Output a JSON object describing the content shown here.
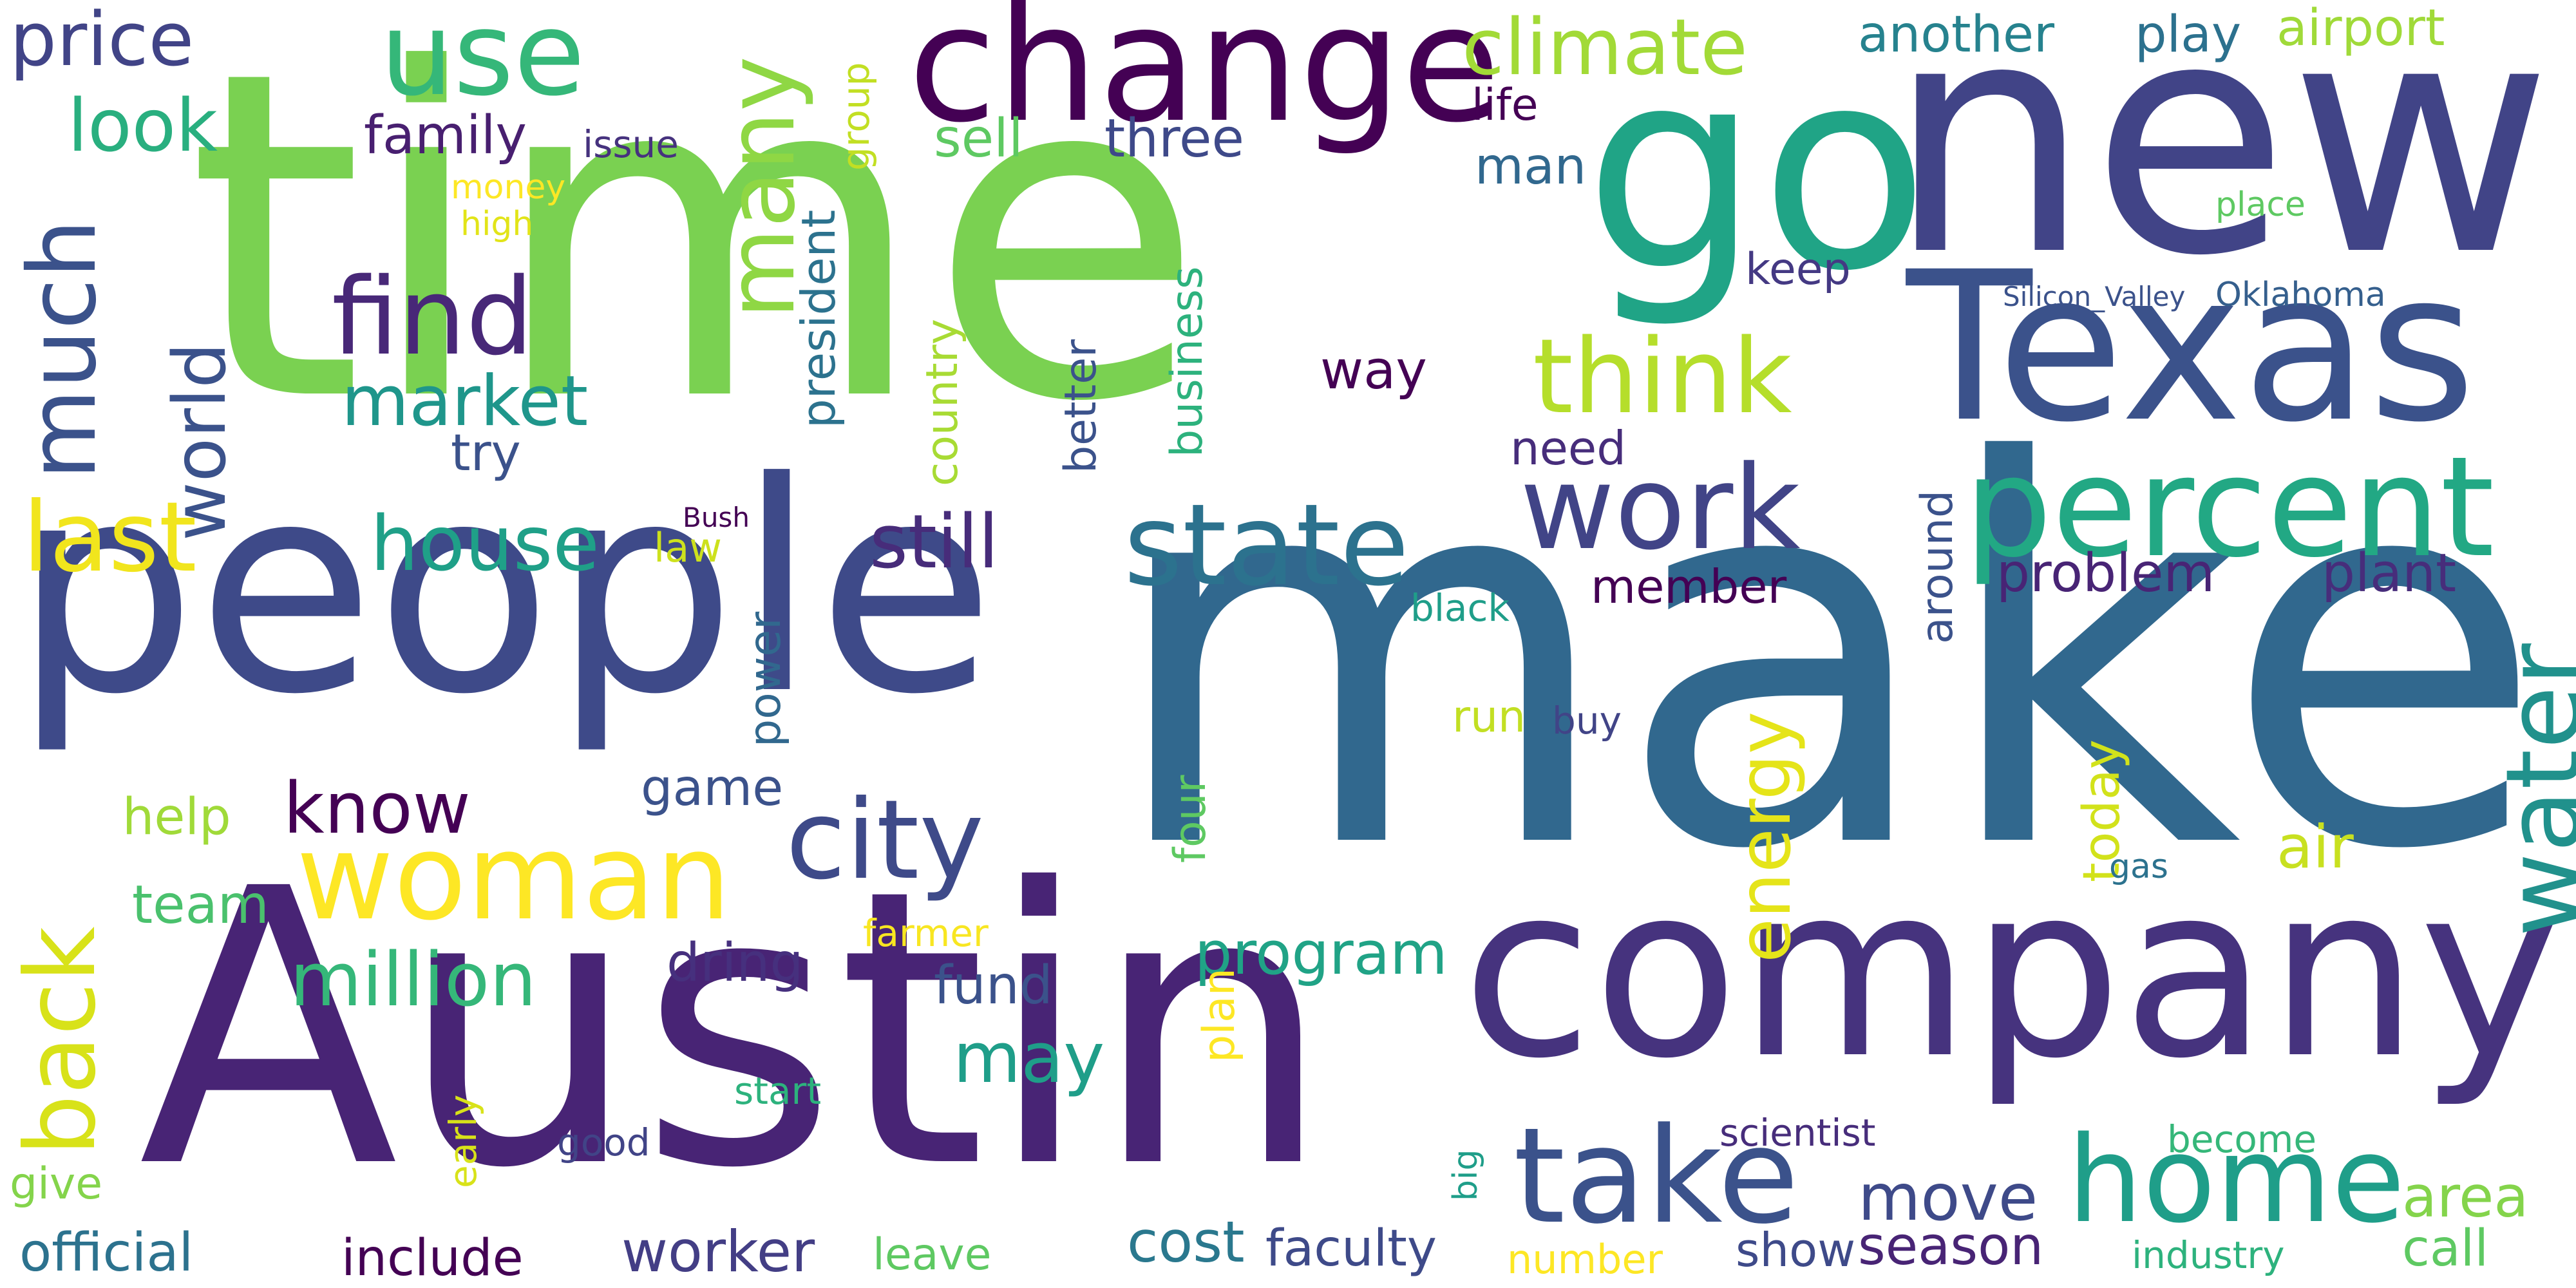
{
  "word_cloud": {
    "words": [
      {
        "text": "time",
        "color": "#7ad151"
      },
      {
        "text": "make",
        "color": "#31688e"
      },
      {
        "text": "Austin",
        "color": "#482475"
      },
      {
        "text": "people",
        "color": "#3e4a89"
      },
      {
        "text": "new",
        "color": "#414487"
      },
      {
        "text": "company",
        "color": "#46337e"
      },
      {
        "text": "go",
        "color": "#20a486"
      },
      {
        "text": "Texas",
        "color": "#3b528b"
      },
      {
        "text": "change",
        "color": "#440154"
      },
      {
        "text": "percent",
        "color": "#22a884"
      },
      {
        "text": "home",
        "color": "#1f9e89"
      },
      {
        "text": "take",
        "color": "#3b528b"
      },
      {
        "text": "state",
        "color": "#2c728e"
      },
      {
        "text": "work",
        "color": "#414487"
      },
      {
        "text": "woman",
        "color": "#fde725"
      },
      {
        "text": "city",
        "color": "#3e4a89"
      },
      {
        "text": "water",
        "color": "#21918c"
      },
      {
        "text": "use",
        "color": "#35b779"
      },
      {
        "text": "many",
        "color": "#8fd744"
      },
      {
        "text": "find",
        "color": "#482878"
      },
      {
        "text": "think",
        "color": "#b5de2b"
      },
      {
        "text": "much",
        "color": "#3b528b"
      },
      {
        "text": "climate",
        "color": "#a2da37"
      },
      {
        "text": "last",
        "color": "#f1e51d"
      },
      {
        "text": "back",
        "color": "#d8e219"
      },
      {
        "text": "million",
        "color": "#35b779"
      },
      {
        "text": "house",
        "color": "#1fa088"
      },
      {
        "text": "market",
        "color": "#1f968b"
      },
      {
        "text": "still",
        "color": "#472c7a"
      },
      {
        "text": "price",
        "color": "#414487"
      },
      {
        "text": "look",
        "color": "#29af7f"
      },
      {
        "text": "world",
        "color": "#3b528b"
      },
      {
        "text": "energy",
        "color": "#e5e419"
      },
      {
        "text": "know",
        "color": "#440154"
      },
      {
        "text": "may",
        "color": "#1f9e89"
      },
      {
        "text": "move",
        "color": "#3e4a89"
      },
      {
        "text": "program",
        "color": "#20a386"
      },
      {
        "text": "problem",
        "color": "#482475"
      },
      {
        "text": "plant",
        "color": "#472d7b"
      },
      {
        "text": "family",
        "color": "#481f70"
      },
      {
        "text": "three",
        "color": "#3e4989"
      },
      {
        "text": "another",
        "color": "#26828e"
      },
      {
        "text": "play",
        "color": "#2c718e"
      },
      {
        "text": "airport",
        "color": "#a0da39"
      },
      {
        "text": "member",
        "color": "#440154"
      },
      {
        "text": "team",
        "color": "#4ac16d"
      },
      {
        "text": "help",
        "color": "#a0da39"
      },
      {
        "text": "game",
        "color": "#3b528b"
      },
      {
        "text": "dring",
        "color": "#46307e"
      },
      {
        "text": "fund",
        "color": "#3b528b"
      },
      {
        "text": "cost",
        "color": "#2a788e"
      },
      {
        "text": "faculty",
        "color": "#3e4a89"
      },
      {
        "text": "worker",
        "color": "#433e85"
      },
      {
        "text": "official",
        "color": "#2c728e"
      },
      {
        "text": "include",
        "color": "#440154"
      },
      {
        "text": "season",
        "color": "#482475"
      },
      {
        "text": "area",
        "color": "#84d44b"
      },
      {
        "text": "call",
        "color": "#5ec962"
      },
      {
        "text": "air",
        "color": "#c8e020"
      },
      {
        "text": "today",
        "color": "#d2e21b"
      },
      {
        "text": "around",
        "color": "#3b528b"
      },
      {
        "text": "sell",
        "color": "#5ec962"
      },
      {
        "text": "way",
        "color": "#440154"
      },
      {
        "text": "need",
        "color": "#472d7b"
      },
      {
        "text": "try",
        "color": "#3b528b"
      },
      {
        "text": "life",
        "color": "#440154"
      },
      {
        "text": "man",
        "color": "#31688e"
      },
      {
        "text": "keep",
        "color": "#443983"
      },
      {
        "text": "president",
        "color": "#2c728e"
      },
      {
        "text": "country",
        "color": "#a8db34"
      },
      {
        "text": "better",
        "color": "#3b528b"
      },
      {
        "text": "business",
        "color": "#2db27d"
      },
      {
        "text": "power",
        "color": "#31688e"
      },
      {
        "text": "four",
        "color": "#5ec962"
      },
      {
        "text": "plan",
        "color": "#fde725"
      },
      {
        "text": "group",
        "color": "#c2df23"
      },
      {
        "text": "run",
        "color": "#c2df23"
      },
      {
        "text": "buy",
        "color": "#414487"
      },
      {
        "text": "show",
        "color": "#3e4a89"
      },
      {
        "text": "number",
        "color": "#fde725"
      },
      {
        "text": "leave",
        "color": "#5ec962"
      },
      {
        "text": "industry",
        "color": "#2db27d"
      },
      {
        "text": "become",
        "color": "#35b779"
      },
      {
        "text": "scientist",
        "color": "#472d7b"
      },
      {
        "text": "give",
        "color": "#84d44b"
      },
      {
        "text": "good",
        "color": "#414487"
      },
      {
        "text": "start",
        "color": "#2db27d"
      },
      {
        "text": "early",
        "color": "#d8e219"
      },
      {
        "text": "big",
        "color": "#1f9e89"
      },
      {
        "text": "farmer",
        "color": "#f8e621"
      },
      {
        "text": "black",
        "color": "#1f9e89"
      },
      {
        "text": "gas",
        "color": "#2c728e"
      },
      {
        "text": "law",
        "color": "#cde11d"
      },
      {
        "text": "issue",
        "color": "#46327e"
      },
      {
        "text": "money",
        "color": "#fde725"
      },
      {
        "text": "high",
        "color": "#e2e418"
      },
      {
        "text": "place",
        "color": "#5ec962"
      },
      {
        "text": "Silicon_Valley",
        "color": "#3b528b"
      },
      {
        "text": "Oklahoma",
        "color": "#355f8d"
      },
      {
        "text": "Bush",
        "color": "#440154"
      }
    ]
  }
}
